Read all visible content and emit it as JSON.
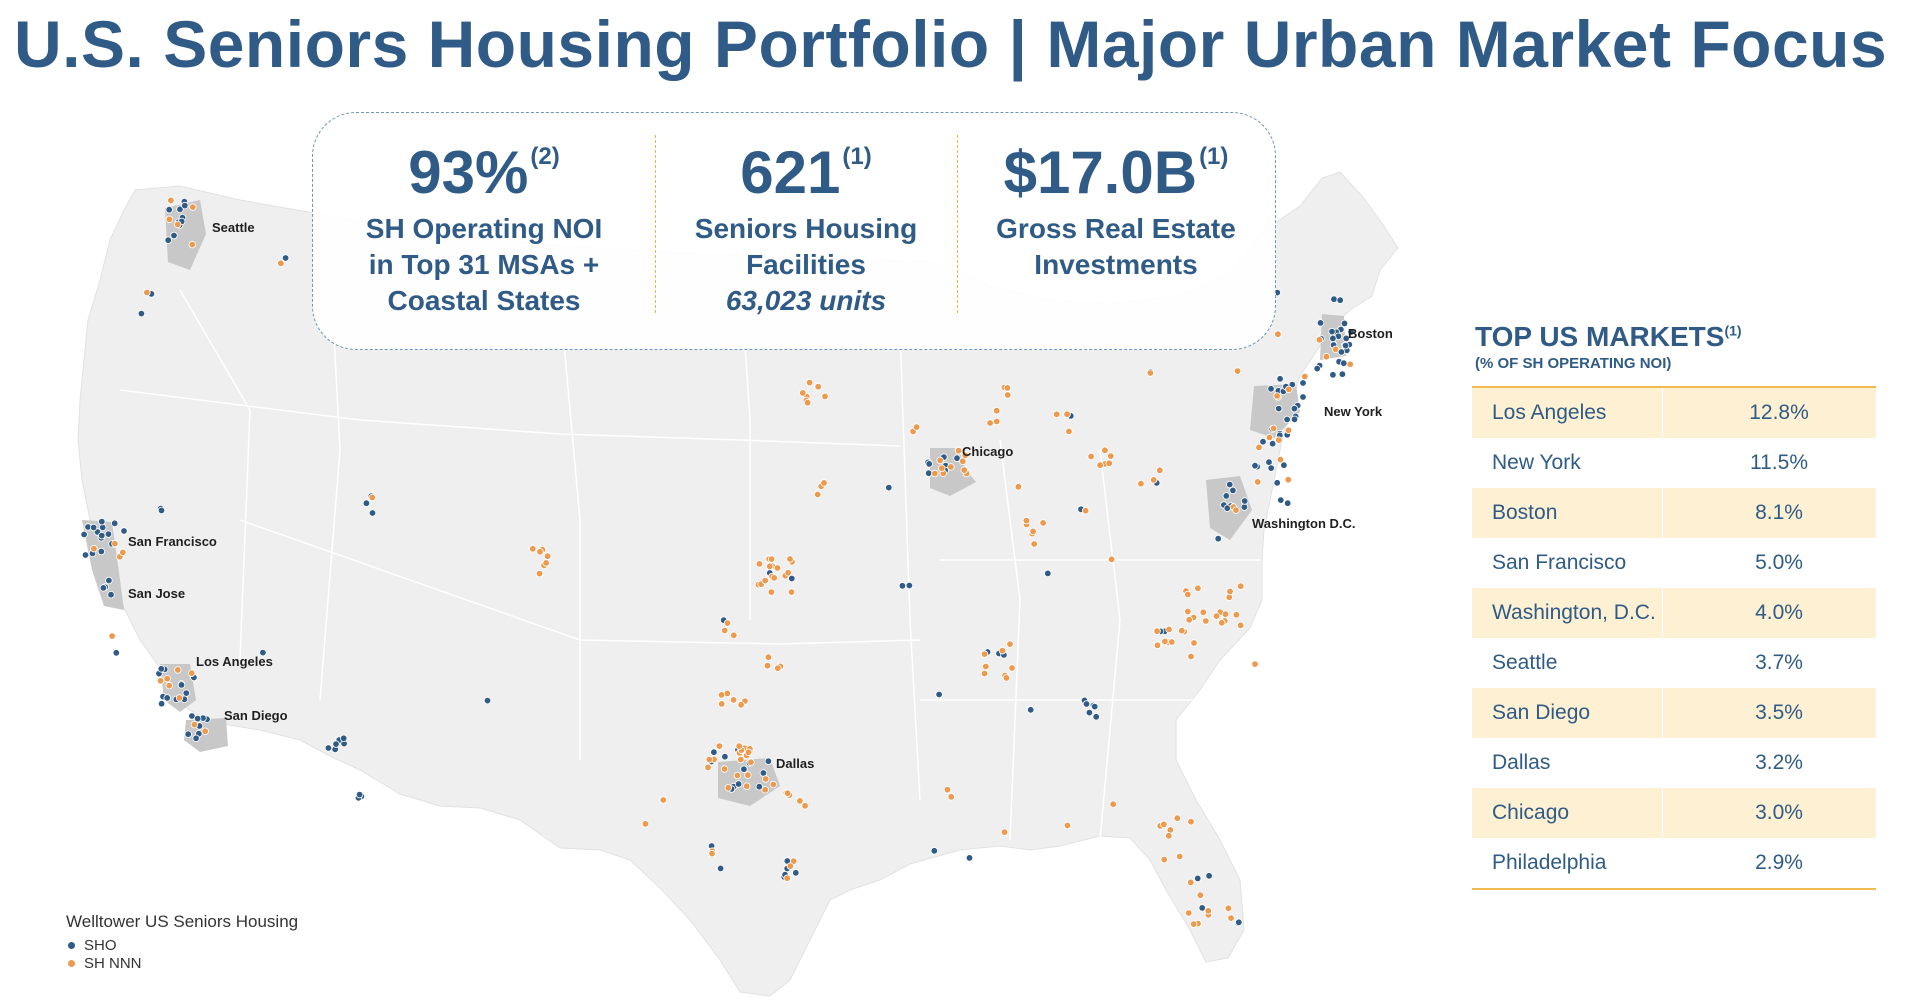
{
  "title": "U.S. Seniors Housing Portfolio | Major Urban Market Focus",
  "stats": [
    {
      "value": "93%",
      "note": "(2)",
      "lines": [
        "SH Operating NOI",
        "in Top 31 MSAs +",
        "Coastal States"
      ],
      "italic": ""
    },
    {
      "value": "621",
      "note": "(1)",
      "lines": [
        "Seniors Housing",
        "Facilities"
      ],
      "italic": "63,023 units"
    },
    {
      "value": "$17.0B",
      "note": "(1)",
      "lines": [
        "Gross Real Estate",
        "Investments"
      ],
      "italic": ""
    }
  ],
  "map": {
    "labels": [
      "Seattle",
      "San Francisco",
      "San Jose",
      "Los Angeles",
      "San Diego",
      "Dallas",
      "Chicago",
      "Boston",
      "New York",
      "Washington D.C."
    ],
    "colors": {
      "sho": "#2f5b86",
      "nnn": "#ec9a4e",
      "land": "#efefef",
      "metro": "#c8c8c8"
    }
  },
  "markets": {
    "heading": "TOP US MARKETS",
    "heading_note": "(1)",
    "subheading": "(% OF SH OPERATING NOI)",
    "rows": [
      {
        "name": "Los Angeles",
        "value": "12.8%"
      },
      {
        "name": "New York",
        "value": "11.5%"
      },
      {
        "name": "Boston",
        "value": "8.1%"
      },
      {
        "name": "San Francisco",
        "value": "5.0%"
      },
      {
        "name": "Washington, D.C.",
        "value": "4.0%"
      },
      {
        "name": "Seattle",
        "value": "3.7%"
      },
      {
        "name": "San Diego",
        "value": "3.5%"
      },
      {
        "name": "Dallas",
        "value": "3.2%"
      },
      {
        "name": "Chicago",
        "value": "3.0%"
      },
      {
        "name": "Philadelphia",
        "value": "2.9%"
      }
    ]
  },
  "legend": {
    "title": "Welltower US Seniors Housing",
    "items": [
      {
        "label": "SHO",
        "color": "#2f5b86"
      },
      {
        "label": "SH NNN",
        "color": "#ec9a4e"
      }
    ]
  }
}
